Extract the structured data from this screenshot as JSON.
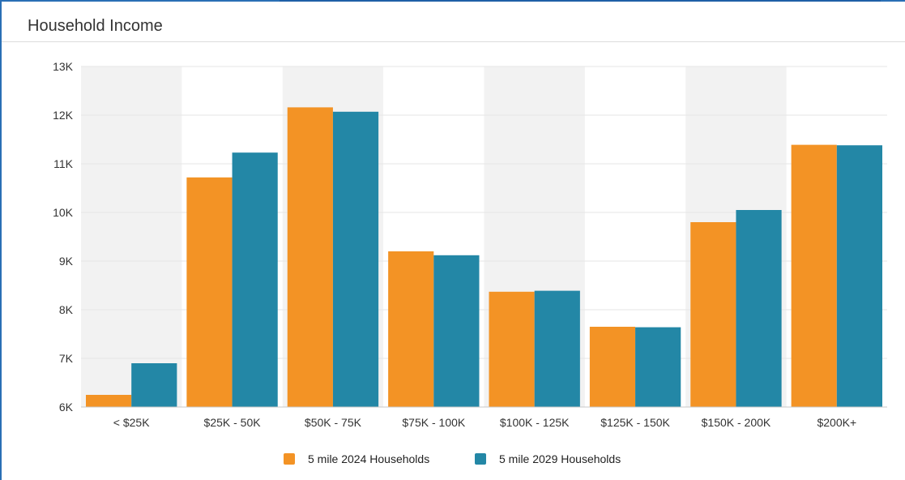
{
  "panel": {
    "title": "Household Income"
  },
  "colors": {
    "series_2024": "#f39325",
    "series_2029": "#2387a6",
    "band": "#f2f2f2",
    "grid": "#e6e6e6"
  },
  "chart_data": {
    "type": "bar",
    "title": "Household Income",
    "xlabel": "",
    "ylabel": "",
    "categories": [
      "< $25K",
      "$25K - 50K",
      "$50K - 75K",
      "$75K - 100K",
      "$100K - 125K",
      "$125K - 150K",
      "$150K - 200K",
      "$200K+"
    ],
    "series": [
      {
        "name": "5 mile 2024 Households",
        "values": [
          6250,
          10720,
          12160,
          9200,
          8370,
          7650,
          9800,
          11390
        ]
      },
      {
        "name": "5 mile 2029 Households",
        "values": [
          6900,
          11230,
          12070,
          9120,
          8390,
          7640,
          10050,
          11380
        ]
      }
    ],
    "ylim": [
      6000,
      13000
    ],
    "yticks": [
      6000,
      7000,
      8000,
      9000,
      10000,
      11000,
      12000,
      13000
    ],
    "ytick_labels": [
      "6K",
      "7K",
      "8K",
      "9K",
      "10K",
      "11K",
      "12K",
      "13K"
    ],
    "grid": true,
    "alternating_bands": true,
    "legend_position": "bottom-center"
  }
}
